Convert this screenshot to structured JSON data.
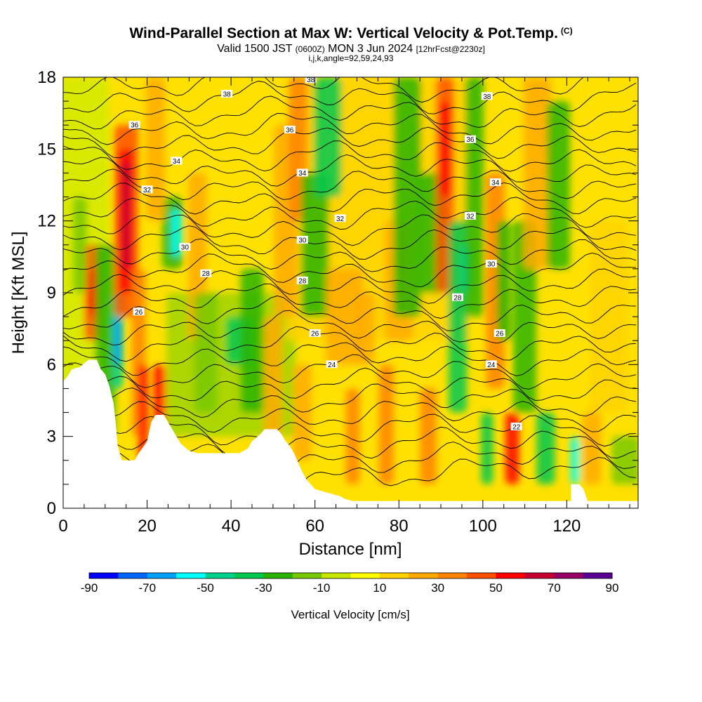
{
  "header": {
    "title": "Wind-Parallel Section at Max W: Vertical Velocity & Pot.Temp.",
    "copyright": "(C)",
    "valid_prefix": "Valid 1500 JST",
    "valid_utc": "(0600Z)",
    "valid_date": "MON 3 Jun 2024",
    "forecast": "[12hrFcst@2230z]",
    "indices": "i,j,k,angle=92,59,24,93"
  },
  "colors": {
    "terrain": "#ffffff",
    "contour": "#000000"
  },
  "chart_data": {
    "type": "heatmap",
    "xlabel": "Distance [nm]",
    "ylabel": "Height [Kft MSL]",
    "xlim": [
      0,
      137
    ],
    "ylim": [
      0,
      18
    ],
    "xticks": [
      "0",
      "20",
      "40",
      "60",
      "80",
      "100",
      "120"
    ],
    "yticks": [
      "0",
      "3",
      "6",
      "9",
      "12",
      "15",
      "18"
    ],
    "colorbar": {
      "label": "Vertical Velocity [cm/s]",
      "ticks": [
        "-90",
        "-70",
        "-50",
        "-30",
        "-10",
        "10",
        "30",
        "50",
        "70",
        "90"
      ],
      "range": [
        -90,
        90
      ],
      "colors": [
        "#0000ff",
        "#0064ff",
        "#00a0ff",
        "#00ffff",
        "#00d28c",
        "#00c850",
        "#28b400",
        "#78c800",
        "#c8e600",
        "#ffff00",
        "#ffd200",
        "#ffaa00",
        "#ff8200",
        "#ff5000",
        "#ff0000",
        "#c80032",
        "#960064",
        "#5a0096"
      ]
    },
    "theta_contour_labels": [
      {
        "text": "38",
        "x": 39,
        "y": 17.3
      },
      {
        "text": "38",
        "x": 59,
        "y": 17.9
      },
      {
        "text": "38",
        "x": 101,
        "y": 17.2
      },
      {
        "text": "36",
        "x": 17,
        "y": 16.0
      },
      {
        "text": "36",
        "x": 54,
        "y": 15.8
      },
      {
        "text": "36",
        "x": 97,
        "y": 15.4
      },
      {
        "text": "34",
        "x": 27,
        "y": 14.5
      },
      {
        "text": "34",
        "x": 57,
        "y": 14.0
      },
      {
        "text": "34",
        "x": 103,
        "y": 13.6
      },
      {
        "text": "32",
        "x": 20,
        "y": 13.3
      },
      {
        "text": "32",
        "x": 66,
        "y": 12.1
      },
      {
        "text": "32",
        "x": 97,
        "y": 12.2
      },
      {
        "text": "30",
        "x": 29,
        "y": 10.9
      },
      {
        "text": "30",
        "x": 57,
        "y": 11.2
      },
      {
        "text": "30",
        "x": 102,
        "y": 10.2
      },
      {
        "text": "28",
        "x": 34,
        "y": 9.8
      },
      {
        "text": "28",
        "x": 57,
        "y": 9.5
      },
      {
        "text": "28",
        "x": 94,
        "y": 8.8
      },
      {
        "text": "26",
        "x": 18,
        "y": 8.2
      },
      {
        "text": "26",
        "x": 60,
        "y": 7.3
      },
      {
        "text": "26",
        "x": 104,
        "y": 7.3
      },
      {
        "text": "24",
        "x": 64,
        "y": 6.0
      },
      {
        "text": "24",
        "x": 102,
        "y": 6.0
      },
      {
        "text": "22",
        "x": 108,
        "y": 3.4
      }
    ],
    "terrain_profile": [
      [
        0,
        5.3
      ],
      [
        1,
        5.5
      ],
      [
        2,
        5.8
      ],
      [
        4,
        5.9
      ],
      [
        6,
        6.2
      ],
      [
        8,
        6.2
      ],
      [
        9,
        5.8
      ],
      [
        10,
        5.6
      ],
      [
        11,
        5.1
      ],
      [
        12,
        4.4
      ],
      [
        12.5,
        3.6
      ],
      [
        13,
        2.6
      ],
      [
        14,
        2.0
      ],
      [
        17,
        2.0
      ],
      [
        18,
        2.3
      ],
      [
        20,
        2.8
      ],
      [
        21,
        3.6
      ],
      [
        22,
        3.9
      ],
      [
        24,
        3.9
      ],
      [
        26,
        3.3
      ],
      [
        27,
        3.0
      ],
      [
        28,
        2.7
      ],
      [
        30,
        2.4
      ],
      [
        32,
        2.3
      ],
      [
        37,
        2.3
      ],
      [
        40,
        2.3
      ],
      [
        42,
        2.3
      ],
      [
        44,
        2.5
      ],
      [
        45,
        2.8
      ],
      [
        47,
        3.1
      ],
      [
        48,
        3.3
      ],
      [
        51,
        3.3
      ],
      [
        52,
        3.1
      ],
      [
        53,
        2.8
      ],
      [
        54,
        2.6
      ],
      [
        55,
        2.3
      ],
      [
        56,
        1.9
      ],
      [
        57,
        1.5
      ],
      [
        58,
        1.2
      ],
      [
        59,
        1.0
      ],
      [
        60,
        0.8
      ],
      [
        62,
        0.7
      ],
      [
        64,
        0.6
      ],
      [
        66,
        0.5
      ],
      [
        67,
        0.4
      ],
      [
        69,
        0.3
      ],
      [
        70,
        0.3
      ],
      [
        121,
        0.3
      ],
      [
        121,
        1.0
      ],
      [
        123,
        1.0
      ],
      [
        124,
        0.8
      ],
      [
        125,
        0.3
      ],
      [
        137,
        0.3
      ]
    ]
  }
}
